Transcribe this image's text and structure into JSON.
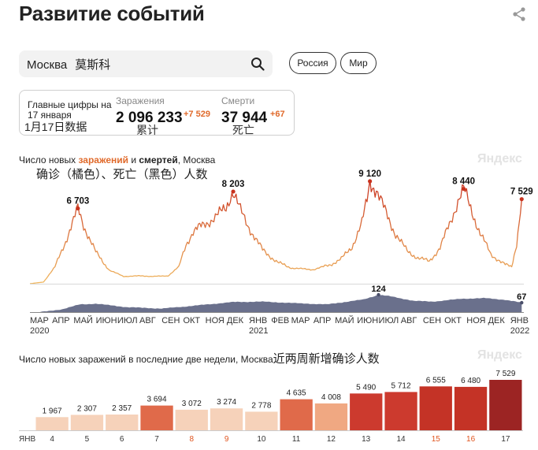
{
  "header": {
    "title": "Развитие событий"
  },
  "search": {
    "query": "Москва",
    "annotation": "莫斯科"
  },
  "region_buttons": [
    "Россия",
    "Мир"
  ],
  "summary": {
    "label": "Главные цифры на 17 января",
    "label_annotation": "1月17日数据",
    "infections": {
      "label": "Заражения",
      "value": "2 096 233",
      "delta": "+7 529",
      "annotation": "累计"
    },
    "deaths": {
      "label": "Смерти",
      "value": "37 944",
      "delta": "+67",
      "annotation": "死亡"
    }
  },
  "main_chart": {
    "title_prefix": "Число новых ",
    "title_infections": "заражений",
    "title_and": " и ",
    "title_deaths": "смертей",
    "title_suffix": ", Москва",
    "annotation": "确诊（橘色）、死亡（黑色）人数",
    "watermark": "Яндекс"
  },
  "bar_chart_header": {
    "title": "Число новых заражений в последние две недели, Москва",
    "annotation": "近两周新增确诊人数",
    "watermark": "Яндекс",
    "month_label": "ЯНВ"
  },
  "colors": {
    "infections_low": "#f0b860",
    "infections_high": "#c8321e",
    "deaths": "#4a4f6a",
    "accent": "#e06a2b",
    "weekend_tick": "#e0551f"
  },
  "chart_data": [
    {
      "type": "line",
      "title": "Число новых заражений и смертей, Москва",
      "series_name": "заражений",
      "x_range": [
        "2020-03",
        "2022-01"
      ],
      "month_ticks": [
        "МАР",
        "АПР",
        "МАЙ",
        "ИЮН",
        "ИЮЛ",
        "АВГ",
        "СЕН",
        "ОКТ",
        "НОЯ",
        "ДЕК",
        "ЯНВ",
        "ФЕВ",
        "МАР",
        "АПР",
        "МАЙ",
        "ИЮН",
        "ИЮЛ",
        "АВГ",
        "СЕН",
        "ОКТ",
        "НОЯ",
        "ДЕК",
        "ЯНВ"
      ],
      "year_labels": [
        "2020",
        "2021",
        "2022"
      ],
      "points": [
        [
          "2020-03-01",
          0
        ],
        [
          "2020-03-20",
          150
        ],
        [
          "2020-04-05",
          1500
        ],
        [
          "2020-04-20",
          3800
        ],
        [
          "2020-05-01",
          5600
        ],
        [
          "2020-05-07",
          6703
        ],
        [
          "2020-05-15",
          5200
        ],
        [
          "2020-06-01",
          2800
        ],
        [
          "2020-06-20",
          1200
        ],
        [
          "2020-07-10",
          650
        ],
        [
          "2020-08-01",
          700
        ],
        [
          "2020-08-20",
          650
        ],
        [
          "2020-09-10",
          700
        ],
        [
          "2020-09-25",
          1500
        ],
        [
          "2020-10-05",
          3500
        ],
        [
          "2020-10-15",
          4600
        ],
        [
          "2020-10-28",
          5200
        ],
        [
          "2020-11-15",
          5900
        ],
        [
          "2020-11-30",
          6800
        ],
        [
          "2020-12-06",
          7800
        ],
        [
          "2020-12-10",
          8203
        ],
        [
          "2020-12-20",
          6500
        ],
        [
          "2021-01-01",
          5000
        ],
        [
          "2021-01-20",
          3000
        ],
        [
          "2021-02-10",
          1900
        ],
        [
          "2021-03-01",
          1400
        ],
        [
          "2021-04-01",
          1250
        ],
        [
          "2021-04-25",
          1700
        ],
        [
          "2021-05-10",
          2200
        ],
        [
          "2021-05-25",
          3300
        ],
        [
          "2021-06-08",
          5400
        ],
        [
          "2021-06-15",
          7500
        ],
        [
          "2021-06-19",
          9120
        ],
        [
          "2021-06-28",
          8300
        ],
        [
          "2021-07-10",
          6500
        ],
        [
          "2021-07-25",
          4400
        ],
        [
          "2021-08-10",
          2900
        ],
        [
          "2021-08-25",
          2300
        ],
        [
          "2021-09-10",
          2000
        ],
        [
          "2021-09-25",
          3200
        ],
        [
          "2021-10-10",
          5600
        ],
        [
          "2021-10-20",
          7400
        ],
        [
          "2021-10-28",
          8440
        ],
        [
          "2021-11-05",
          7000
        ],
        [
          "2021-11-20",
          4500
        ],
        [
          "2021-12-05",
          2600
        ],
        [
          "2021-12-25",
          1700
        ],
        [
          "2022-01-03",
          1500
        ],
        [
          "2022-01-10",
          3600
        ],
        [
          "2022-01-17",
          7529
        ]
      ],
      "annotated_peaks": [
        {
          "x": "2020-05-07",
          "label": "6 703"
        },
        {
          "x": "2020-12-10",
          "label": "8 203"
        },
        {
          "x": "2021-06-19",
          "label": "9 120"
        },
        {
          "x": "2021-10-28",
          "label": "8 440"
        },
        {
          "x": "2022-01-17",
          "label": "7 529"
        }
      ]
    },
    {
      "type": "area",
      "series_name": "смертей",
      "points": [
        [
          "2020-03-15",
          0
        ],
        [
          "2020-04-15",
          20
        ],
        [
          "2020-05-10",
          55
        ],
        [
          "2020-06-01",
          60
        ],
        [
          "2020-07-15",
          35
        ],
        [
          "2020-09-01",
          25
        ],
        [
          "2020-10-15",
          45
        ],
        [
          "2020-12-10",
          72
        ],
        [
          "2021-01-20",
          75
        ],
        [
          "2021-03-01",
          65
        ],
        [
          "2021-04-20",
          55
        ],
        [
          "2021-06-10",
          90
        ],
        [
          "2021-07-01",
          124
        ],
        [
          "2021-07-15",
          115
        ],
        [
          "2021-08-20",
          80
        ],
        [
          "2021-09-15",
          75
        ],
        [
          "2021-10-25",
          95
        ],
        [
          "2021-11-25",
          100
        ],
        [
          "2021-12-25",
          88
        ],
        [
          "2022-01-17",
          67
        ]
      ],
      "annotated_peaks": [
        {
          "x": "2021-07-01",
          "label": "124"
        },
        {
          "x": "2022-01-17",
          "label": "67"
        }
      ]
    },
    {
      "type": "bar",
      "title": "Число новых заражений в последние две недели, Москва",
      "categories": [
        "4",
        "5",
        "6",
        "7",
        "8",
        "9",
        "10",
        "11",
        "12",
        "13",
        "14",
        "15",
        "16",
        "17"
      ],
      "values": [
        1967,
        2307,
        2357,
        3694,
        3072,
        3274,
        2778,
        4635,
        4008,
        5490,
        5712,
        6555,
        6480,
        7529
      ],
      "value_labels": [
        "1 967",
        "2 307",
        "2 357",
        "3 694",
        "3 072",
        "3 274",
        "2 778",
        "4 635",
        "4 008",
        "5 490",
        "5 712",
        "6 555",
        "6 480",
        "7 529"
      ],
      "highlighted_categories": [
        "8",
        "9",
        "15",
        "16"
      ],
      "colors": [
        "#f6d2ba",
        "#f6d2ba",
        "#f6d2ba",
        "#e06a4a",
        "#f6d2ba",
        "#f6d2ba",
        "#f6d2ba",
        "#e06a4a",
        "#f0a882",
        "#cc3a2e",
        "#cc3a2e",
        "#c43326",
        "#c43326",
        "#9c2423"
      ]
    }
  ]
}
